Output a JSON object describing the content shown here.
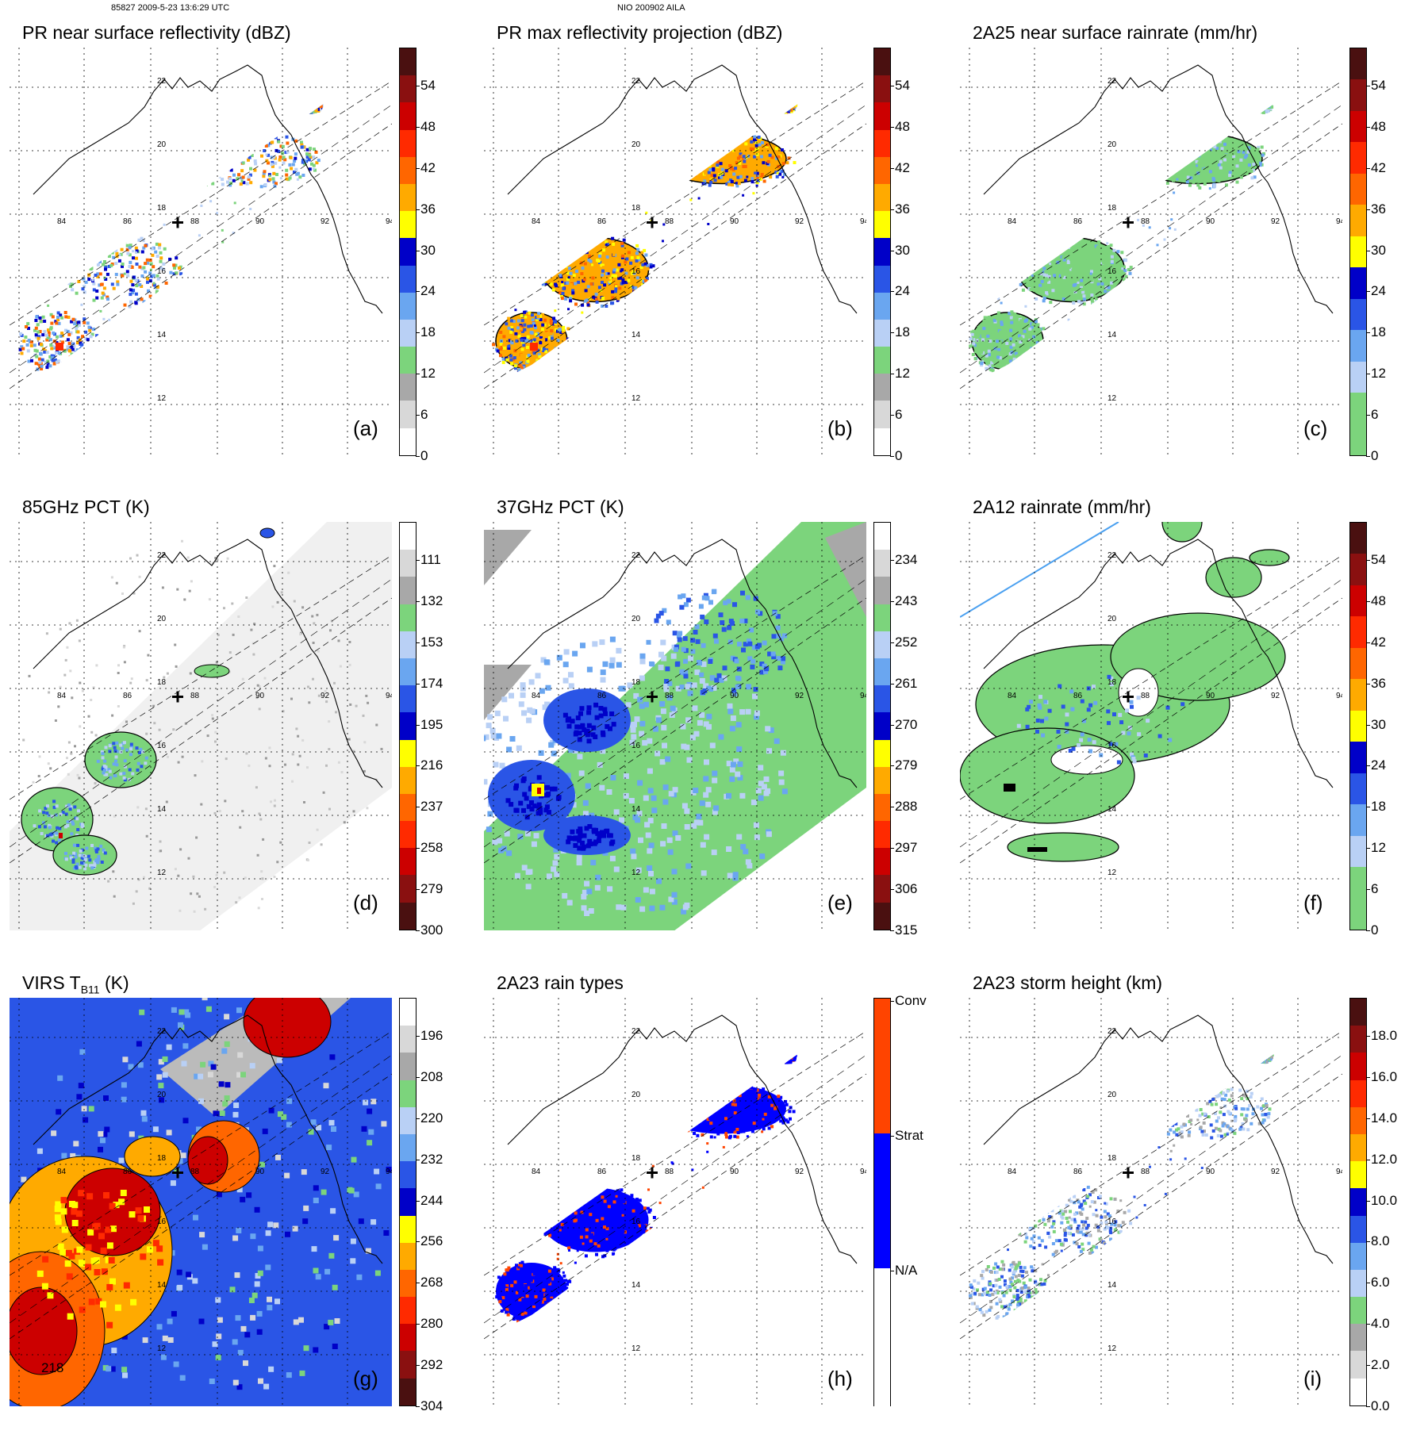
{
  "header": {
    "left": "85827 2009-5-23 13:6:29 UTC",
    "center": "NIO 200902 AILA"
  },
  "map_labels": {
    "lon": [
      "84",
      "86",
      "88",
      "90",
      "92",
      "94"
    ],
    "lat": [
      "22",
      "20",
      "18",
      "16",
      "14",
      "12"
    ]
  },
  "panels": [
    {
      "id": "a",
      "title": "PR near surface reflectivity (dBZ)",
      "label": "(a)",
      "kind": "pr_swath",
      "palette": [
        "#ffffff",
        "#d8d8d8",
        "#a8a8a8",
        "#7cd47c",
        "#b9d0f5",
        "#6aa6f0",
        "#2a55e6",
        "#0000c8",
        "#ffff00",
        "#ffaa00",
        "#ff6600",
        "#ff2a00",
        "#cc0000",
        "#8a1010",
        "#4a1010"
      ],
      "ticks": [
        "54",
        "48",
        "42",
        "36",
        "30",
        "24",
        "18",
        "12",
        "6",
        "0"
      ]
    },
    {
      "id": "b",
      "title": "PR max reflectivity projection (dBZ)",
      "label": "(b)",
      "kind": "pr_swath_outline",
      "palette": [
        "#ffffff",
        "#d8d8d8",
        "#a8a8a8",
        "#7cd47c",
        "#b9d0f5",
        "#6aa6f0",
        "#2a55e6",
        "#0000c8",
        "#ffff00",
        "#ffaa00",
        "#ff6600",
        "#ff2a00",
        "#cc0000",
        "#8a1010",
        "#4a1010"
      ],
      "ticks": [
        "54",
        "48",
        "42",
        "36",
        "30",
        "24",
        "18",
        "12",
        "6",
        "0"
      ]
    },
    {
      "id": "c",
      "title": "2A25 near surface rainrate (mm/hr)",
      "label": "(c)",
      "kind": "rain_swath",
      "palette": [
        "#7cd47c",
        "#7cd47c",
        "#b9d0f5",
        "#6aa6f0",
        "#2a55e6",
        "#0000c8",
        "#ffff00",
        "#ffaa00",
        "#ff6600",
        "#ff2a00",
        "#cc0000",
        "#8a1010",
        "#4a1010"
      ],
      "ticks": [
        "54",
        "48",
        "42",
        "36",
        "30",
        "24",
        "18",
        "12",
        "6",
        "0"
      ]
    },
    {
      "id": "d",
      "title": "85GHz PCT (K)",
      "label": "(d)",
      "kind": "pct85",
      "palette": [
        "#4a1010",
        "#8a1010",
        "#cc0000",
        "#ff2a00",
        "#ff6600",
        "#ffaa00",
        "#ffff00",
        "#0000c8",
        "#2a55e6",
        "#6aa6f0",
        "#b9d0f5",
        "#7cd47c",
        "#a8a8a8",
        "#d8d8d8",
        "#ffffff"
      ],
      "ticks": [
        "111",
        "132",
        "153",
        "174",
        "195",
        "216",
        "237",
        "258",
        "279",
        "300"
      ]
    },
    {
      "id": "e",
      "title": "37GHz PCT (K)",
      "label": "(e)",
      "kind": "pct37",
      "palette": [
        "#4a1010",
        "#8a1010",
        "#cc0000",
        "#ff2a00",
        "#ff6600",
        "#ffaa00",
        "#ffff00",
        "#0000c8",
        "#2a55e6",
        "#6aa6f0",
        "#b9d0f5",
        "#7cd47c",
        "#a8a8a8",
        "#d8d8d8",
        "#ffffff"
      ],
      "ticks": [
        "234",
        "243",
        "252",
        "261",
        "270",
        "279",
        "288",
        "297",
        "306",
        "315"
      ]
    },
    {
      "id": "f",
      "title": "2A12 rainrate (mm/hr)",
      "label": "(f)",
      "kind": "rain_wide",
      "palette": [
        "#7cd47c",
        "#7cd47c",
        "#b9d0f5",
        "#6aa6f0",
        "#2a55e6",
        "#0000c8",
        "#ffff00",
        "#ffaa00",
        "#ff6600",
        "#ff2a00",
        "#cc0000",
        "#8a1010",
        "#4a1010"
      ],
      "ticks": [
        "54",
        "48",
        "42",
        "36",
        "30",
        "24",
        "18",
        "12",
        "6",
        "0"
      ]
    },
    {
      "id": "g",
      "title_main": "VIRS T",
      "title_sub": "B11",
      "title_end": " (K)",
      "label": "(g)",
      "kind": "virs",
      "contour_label": "218",
      "palette": [
        "#4a1010",
        "#8a1010",
        "#cc0000",
        "#ff2a00",
        "#ff6600",
        "#ffaa00",
        "#ffff00",
        "#0000c8",
        "#2a55e6",
        "#6aa6f0",
        "#b9d0f5",
        "#7cd47c",
        "#a8a8a8",
        "#d8d8d8",
        "#ffffff"
      ],
      "ticks": [
        "196",
        "208",
        "220",
        "232",
        "244",
        "256",
        "268",
        "280",
        "292",
        "304"
      ]
    },
    {
      "id": "h",
      "title": "2A23 rain types",
      "label": "(h)",
      "kind": "raintype",
      "palette": [
        "#ffffff",
        "#0000ff",
        "#ff4400"
      ],
      "ticks": [
        "Conv",
        "Strat",
        "N/A"
      ]
    },
    {
      "id": "i",
      "title": "2A23 storm height (km)",
      "label": "(i)",
      "kind": "height",
      "palette": [
        "#ffffff",
        "#d8d8d8",
        "#a8a8a8",
        "#7cd47c",
        "#b9d0f5",
        "#6aa6f0",
        "#2a55e6",
        "#0000c8",
        "#ffff00",
        "#ffaa00",
        "#ff6600",
        "#ff2a00",
        "#cc0000",
        "#8a1010",
        "#4a1010"
      ],
      "ticks": [
        "18.0",
        "16.0",
        "14.0",
        "12.0",
        "10.0",
        "8.0",
        "6.0",
        "4.0",
        "2.0",
        "0.0"
      ]
    }
  ]
}
